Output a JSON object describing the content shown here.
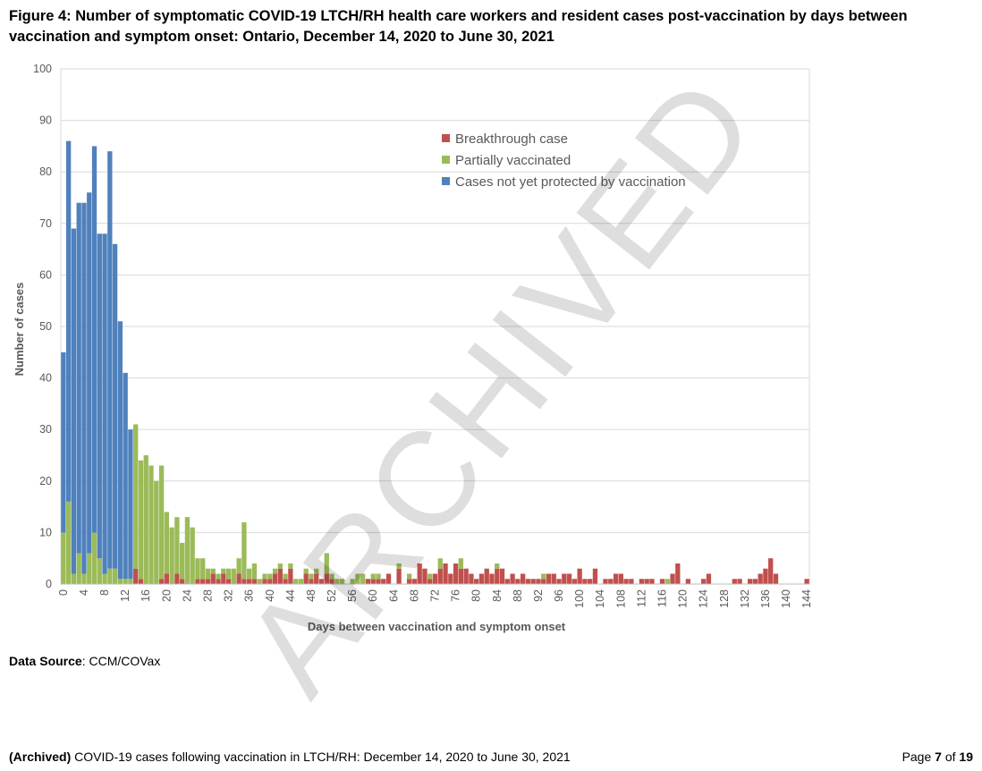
{
  "figure_title": "Figure 4: Number of symptomatic COVID-19 LTCH/RH health care workers and resident cases post-vaccination by days between vaccination and symptom onset: Ontario, December 14, 2020 to June 30, 2021",
  "watermark": "ARCHIVED",
  "source": {
    "label": "Data Source",
    "value": ": CCM/COVax"
  },
  "footer": {
    "archived": "(Archived)",
    "text": " COVID-19 cases following vaccination in LTCH/RH: December 14, 2020 to June 30, 2021",
    "page_prefix": "Page ",
    "page_num": "7",
    "page_mid": " of ",
    "page_total": "19"
  },
  "chart_data": {
    "type": "bar",
    "stacked": true,
    "xlabel": "Days between vaccination and symptom onset",
    "ylabel": "Number of cases",
    "ylim": [
      0,
      100
    ],
    "yticks": [
      0,
      10,
      20,
      30,
      40,
      50,
      60,
      70,
      80,
      90,
      100
    ],
    "xticks": [
      0,
      4,
      8,
      12,
      16,
      20,
      24,
      28,
      32,
      36,
      40,
      44,
      48,
      52,
      56,
      60,
      64,
      68,
      72,
      76,
      80,
      84,
      88,
      92,
      96,
      100,
      104,
      108,
      112,
      116,
      120,
      124,
      128,
      132,
      136,
      140,
      144
    ],
    "x_range": [
      0,
      144
    ],
    "grid": "horizontal",
    "legend_position": "top-right",
    "series": [
      {
        "name": "Breakthrough case",
        "color": "#c0504d",
        "values": {
          "14": 3,
          "15": 1,
          "19": 1,
          "20": 2,
          "22": 2,
          "23": 1,
          "26": 1,
          "27": 1,
          "28": 1,
          "29": 2,
          "30": 1,
          "31": 2,
          "32": 1,
          "34": 2,
          "35": 1,
          "36": 1,
          "37": 1,
          "39": 1,
          "40": 1,
          "41": 2,
          "42": 3,
          "43": 1,
          "44": 3,
          "47": 2,
          "48": 1,
          "49": 2,
          "50": 1,
          "51": 2,
          "52": 1,
          "59": 1,
          "60": 1,
          "61": 1,
          "62": 1,
          "63": 2,
          "65": 3,
          "67": 1,
          "68": 1,
          "69": 4,
          "70": 3,
          "71": 1,
          "72": 2,
          "73": 3,
          "74": 4,
          "75": 2,
          "76": 4,
          "77": 3,
          "78": 3,
          "79": 2,
          "80": 1,
          "81": 2,
          "82": 3,
          "83": 2,
          "84": 3,
          "85": 3,
          "86": 1,
          "87": 2,
          "88": 1,
          "89": 2,
          "90": 1,
          "91": 1,
          "92": 1,
          "93": 1,
          "94": 2,
          "95": 2,
          "96": 1,
          "97": 2,
          "98": 2,
          "99": 1,
          "100": 3,
          "101": 1,
          "102": 1,
          "103": 3,
          "105": 1,
          "106": 1,
          "107": 2,
          "108": 2,
          "109": 1,
          "110": 1,
          "112": 1,
          "113": 1,
          "114": 1,
          "116": 1,
          "118": 2,
          "119": 4,
          "121": 1,
          "124": 1,
          "125": 2,
          "130": 1,
          "131": 1,
          "133": 1,
          "134": 1,
          "135": 2,
          "136": 3,
          "137": 5,
          "138": 2,
          "144": 1
        }
      },
      {
        "name": "Partially vaccinated",
        "color": "#9bbb59",
        "values": {
          "0": 10,
          "1": 16,
          "2": 2,
          "3": 6,
          "4": 2,
          "5": 6,
          "6": 10,
          "7": 5,
          "8": 2,
          "9": 3,
          "10": 3,
          "11": 1,
          "12": 1,
          "13": 1,
          "14": 28,
          "15": 23,
          "16": 25,
          "17": 23,
          "18": 20,
          "19": 22,
          "20": 12,
          "21": 11,
          "22": 11,
          "23": 7,
          "24": 13,
          "25": 11,
          "26": 4,
          "27": 4,
          "28": 2,
          "29": 1,
          "30": 1,
          "31": 1,
          "32": 2,
          "33": 3,
          "34": 3,
          "35": 11,
          "36": 2,
          "37": 3,
          "38": 1,
          "39": 1,
          "40": 1,
          "41": 1,
          "42": 1,
          "43": 1,
          "44": 1,
          "45": 1,
          "46": 1,
          "47": 1,
          "48": 1,
          "49": 1,
          "51": 4,
          "52": 1,
          "53": 1,
          "54": 1,
          "56": 1,
          "57": 2,
          "58": 2,
          "60": 1,
          "61": 1,
          "65": 1,
          "67": 1,
          "71": 1,
          "73": 2,
          "77": 2,
          "84": 1,
          "93": 1,
          "117": 1
        }
      },
      {
        "name": "Cases not yet protected by vaccination",
        "color": "#4f81bd",
        "values": {
          "0": 35,
          "1": 70,
          "2": 67,
          "3": 68,
          "4": 72,
          "5": 70,
          "6": 75,
          "7": 63,
          "8": 66,
          "9": 81,
          "10": 63,
          "11": 50,
          "12": 40,
          "13": 29
        }
      }
    ]
  }
}
